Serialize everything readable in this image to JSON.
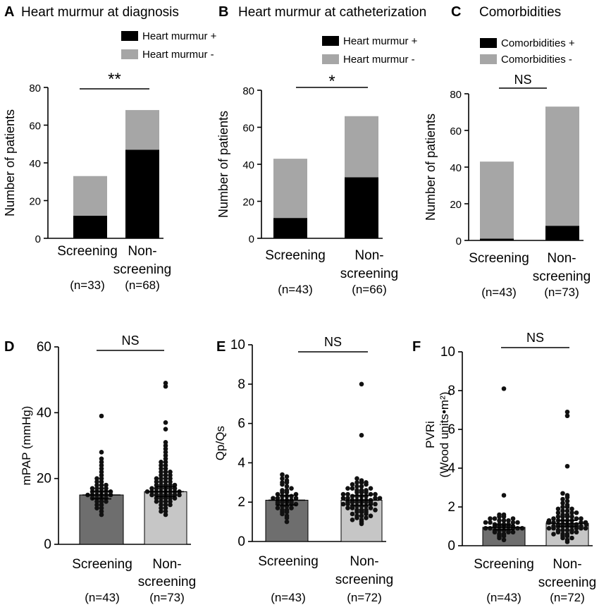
{
  "colors": {
    "black": "#000000",
    "stack_gray": "#a6a6a6",
    "bar_dark": "#6e6e6e",
    "bar_light": "#c6c6c6",
    "dots": "#111111"
  },
  "chart_data": [
    {
      "panel": "A",
      "type": "bar",
      "stacked": true,
      "title": "Heart murmur at diagnosis",
      "ylabel": "Number of patients",
      "ylim": [
        0,
        80
      ],
      "yticks": [
        0,
        20,
        40,
        60,
        80
      ],
      "categories": [
        {
          "lines": [
            "Screening"
          ],
          "n": "(n=33)"
        },
        {
          "lines": [
            "Non-",
            "screening"
          ],
          "n": "(n=68)"
        }
      ],
      "series": [
        {
          "name": "Heart murmur +",
          "values": [
            12,
            47
          ],
          "color": "black"
        },
        {
          "name": "Heart murmur -",
          "values": [
            21,
            21
          ],
          "color": "gray"
        }
      ],
      "significance": "**"
    },
    {
      "panel": "B",
      "type": "bar",
      "stacked": true,
      "title": "Heart murmur at catheterization",
      "ylabel": "Number of patients",
      "ylim": [
        0,
        80
      ],
      "yticks": [
        0,
        20,
        40,
        60,
        80
      ],
      "categories": [
        {
          "lines": [
            "Screening"
          ],
          "n": "(n=43)"
        },
        {
          "lines": [
            "Non-",
            "screening"
          ],
          "n": "(n=66)"
        }
      ],
      "series": [
        {
          "name": "Heart murmur +",
          "values": [
            11,
            33
          ],
          "color": "black"
        },
        {
          "name": "Heart murmur -",
          "values": [
            32,
            33
          ],
          "color": "gray"
        }
      ],
      "significance": "*"
    },
    {
      "panel": "C",
      "type": "bar",
      "stacked": true,
      "title": "Comorbidities",
      "ylabel": "Number of patients",
      "ylim": [
        0,
        80
      ],
      "yticks": [
        0,
        20,
        40,
        60,
        80
      ],
      "categories": [
        {
          "lines": [
            "Screening"
          ],
          "n": "(n=43)"
        },
        {
          "lines": [
            "Non-",
            "screening"
          ],
          "n": "(n=73)"
        }
      ],
      "series": [
        {
          "name": "Comorbidities +",
          "values": [
            1,
            8
          ],
          "color": "black"
        },
        {
          "name": "Comorbidities -",
          "values": [
            42,
            65
          ],
          "color": "gray"
        }
      ],
      "significance": "NS"
    },
    {
      "panel": "D",
      "type": "scatter",
      "title": "",
      "ylabel": "mPAP (mmHg)",
      "ylim": [
        0,
        60
      ],
      "yticks": [
        0,
        20,
        40,
        60
      ],
      "categories": [
        {
          "lines": [
            "Screening"
          ],
          "n": "(n=43)"
        },
        {
          "lines": [
            "Non-",
            "screening"
          ],
          "n": "(n=73)"
        }
      ],
      "means": [
        15,
        16
      ],
      "errors": [
        1.2,
        1.5
      ],
      "points": [
        [
          9,
          10,
          11,
          11,
          12,
          12,
          13,
          13,
          13,
          14,
          14,
          14,
          14,
          15,
          15,
          15,
          15,
          15,
          15,
          16,
          16,
          16,
          16,
          16,
          17,
          17,
          17,
          17,
          18,
          18,
          18,
          19,
          19,
          20,
          20,
          21,
          22,
          23,
          24,
          25,
          26,
          28,
          39
        ],
        [
          9,
          10,
          10,
          11,
          11,
          12,
          12,
          12,
          13,
          13,
          13,
          13,
          14,
          14,
          14,
          14,
          14,
          15,
          15,
          15,
          15,
          15,
          15,
          15,
          16,
          16,
          16,
          16,
          16,
          16,
          16,
          16,
          17,
          17,
          17,
          17,
          17,
          17,
          18,
          18,
          18,
          18,
          18,
          19,
          19,
          19,
          19,
          20,
          20,
          20,
          20,
          21,
          21,
          21,
          22,
          22,
          22,
          23,
          23,
          24,
          24,
          25,
          25,
          26,
          27,
          28,
          29,
          30,
          31,
          35,
          37,
          48,
          49
        ]
      ],
      "significance": "NS"
    },
    {
      "panel": "E",
      "type": "scatter",
      "title": "",
      "ylabel": "Qp/Qs",
      "ylim": [
        0,
        10
      ],
      "yticks": [
        0,
        2,
        4,
        6,
        8,
        10
      ],
      "categories": [
        {
          "lines": [
            "Screening"
          ],
          "n": "(n=43)"
        },
        {
          "lines": [
            "Non-",
            "screening"
          ],
          "n": "(n=72)"
        }
      ],
      "means": [
        2.1,
        2.1
      ],
      "errors": [
        0.25,
        0.25
      ],
      "points": [
        [
          1.0,
          1.2,
          1.3,
          1.4,
          1.5,
          1.5,
          1.6,
          1.6,
          1.7,
          1.7,
          1.8,
          1.8,
          1.9,
          1.9,
          1.9,
          2.0,
          2.0,
          2.0,
          2.0,
          2.1,
          2.1,
          2.1,
          2.2,
          2.2,
          2.2,
          2.3,
          2.3,
          2.3,
          2.4,
          2.4,
          2.5,
          2.5,
          2.6,
          2.6,
          2.7,
          2.8,
          2.9,
          3.0,
          3.0,
          3.1,
          3.2,
          3.3,
          3.4
        ],
        [
          0.9,
          1.0,
          1.1,
          1.2,
          1.2,
          1.3,
          1.3,
          1.4,
          1.4,
          1.5,
          1.5,
          1.5,
          1.6,
          1.6,
          1.6,
          1.7,
          1.7,
          1.7,
          1.8,
          1.8,
          1.8,
          1.8,
          1.9,
          1.9,
          1.9,
          1.9,
          2.0,
          2.0,
          2.0,
          2.0,
          2.0,
          2.0,
          2.1,
          2.1,
          2.1,
          2.1,
          2.1,
          2.2,
          2.2,
          2.2,
          2.2,
          2.3,
          2.3,
          2.3,
          2.3,
          2.4,
          2.4,
          2.4,
          2.5,
          2.5,
          2.5,
          2.6,
          2.6,
          2.6,
          2.7,
          2.7,
          2.8,
          2.8,
          2.9,
          2.9,
          3.0,
          3.0,
          3.1,
          3.2,
          1.1,
          1.3,
          1.6,
          2.4,
          2.7,
          3.0,
          5.4,
          8.0
        ]
      ],
      "significance": "NS"
    },
    {
      "panel": "F",
      "type": "scatter",
      "title": "",
      "ylabel": "PVRi",
      "ylabel2": "(Wood units•m²)",
      "ylim": [
        0,
        10
      ],
      "yticks": [
        0,
        2,
        4,
        6,
        8,
        10
      ],
      "categories": [
        {
          "lines": [
            "Screening"
          ],
          "n": "(n=43)"
        },
        {
          "lines": [
            "Non-",
            "screening"
          ],
          "n": "(n=72)"
        }
      ],
      "means": [
        0.95,
        1.15
      ],
      "errors": [
        0.12,
        0.15
      ],
      "points": [
        [
          0.3,
          0.4,
          0.5,
          0.5,
          0.6,
          0.6,
          0.7,
          0.7,
          0.7,
          0.8,
          0.8,
          0.8,
          0.8,
          0.9,
          0.9,
          0.9,
          0.9,
          0.9,
          1.0,
          1.0,
          1.0,
          1.0,
          1.0,
          1.1,
          1.1,
          1.1,
          1.1,
          1.2,
          1.2,
          1.2,
          1.2,
          1.3,
          1.3,
          1.3,
          1.4,
          1.4,
          1.4,
          1.5,
          1.5,
          1.6,
          1.6,
          2.6,
          8.1
        ],
        [
          0.2,
          0.3,
          0.4,
          0.5,
          0.5,
          0.6,
          0.6,
          0.7,
          0.7,
          0.7,
          0.8,
          0.8,
          0.8,
          0.8,
          0.9,
          0.9,
          0.9,
          0.9,
          1.0,
          1.0,
          1.0,
          1.0,
          1.0,
          1.0,
          1.1,
          1.1,
          1.1,
          1.1,
          1.1,
          1.2,
          1.2,
          1.2,
          1.2,
          1.2,
          1.3,
          1.3,
          1.3,
          1.3,
          1.4,
          1.4,
          1.4,
          1.5,
          1.5,
          1.5,
          1.6,
          1.6,
          1.7,
          1.7,
          1.8,
          1.8,
          1.9,
          1.9,
          2.0,
          2.1,
          2.2,
          2.3,
          2.4,
          2.5,
          2.6,
          2.7,
          0.4,
          0.6,
          0.9,
          1.1,
          1.3,
          1.5,
          1.7,
          2.0,
          4.1,
          6.7,
          6.9,
          1.0
        ]
      ],
      "significance": "NS"
    }
  ]
}
